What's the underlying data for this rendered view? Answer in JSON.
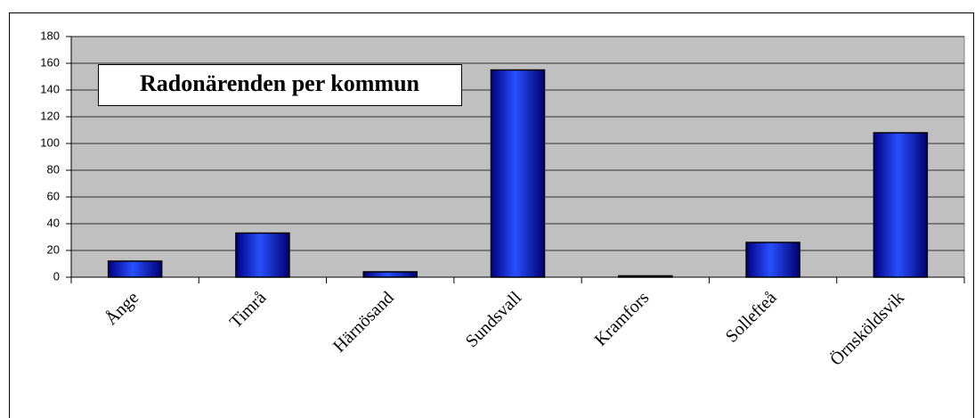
{
  "chart_data": {
    "type": "bar",
    "title": "Radonärenden per kommun",
    "categories": [
      "Ånge",
      "Timrå",
      "Härnösand",
      "Sundsvall",
      "Kramfors",
      "Sollefteå",
      "Örnsköldsvik"
    ],
    "values": [
      12,
      33,
      4,
      155,
      1,
      26,
      108
    ],
    "color": "#0000cc",
    "ylim": [
      0,
      180
    ],
    "yticks": [
      0,
      20,
      40,
      60,
      80,
      100,
      120,
      140,
      160,
      180
    ],
    "grid": true
  }
}
